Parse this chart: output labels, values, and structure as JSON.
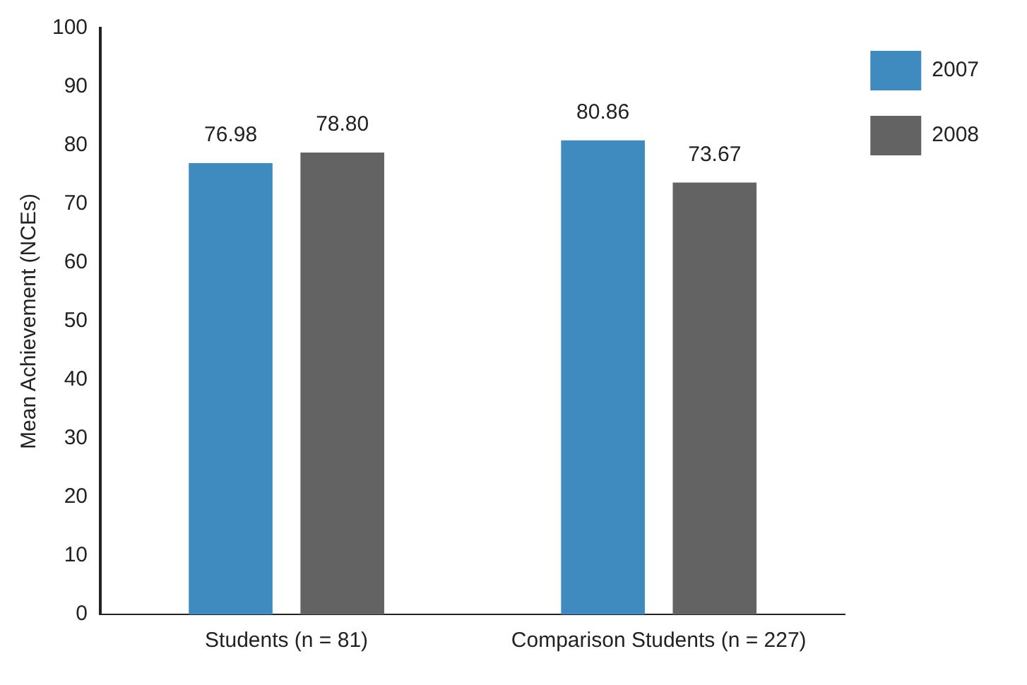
{
  "chart_data": {
    "type": "bar",
    "ylabel": "Mean Achievement (NCEs)",
    "categories": [
      "Students (n = 81)",
      "Comparison Students (n = 227)"
    ],
    "series": [
      {
        "name": "2007",
        "color": "#3f8abf",
        "values": [
          76.98,
          80.86
        ]
      },
      {
        "name": "2008",
        "color": "#636363",
        "values": [
          78.8,
          73.67
        ]
      }
    ],
    "value_labels": [
      [
        "76.98",
        "80.86"
      ],
      [
        "78.80",
        "73.67"
      ]
    ],
    "ylim": [
      0,
      100
    ],
    "yticks": [
      0,
      10,
      20,
      30,
      40,
      50,
      60,
      70,
      80,
      90,
      100
    ],
    "grid": false,
    "legend": "right"
  }
}
